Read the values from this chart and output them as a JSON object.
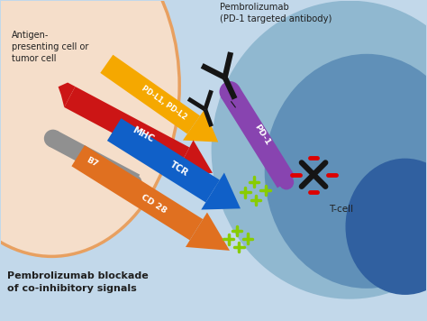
{
  "title": "Pembrolizumab blockade\nof co-inhibitory signals",
  "pembrolizumab_label": "Pembrolizumab\n(PD-1 targeted antibody)",
  "antigen_label": "Antigen-\npresenting cell or\ntumor cell",
  "tcell_label": "T-cell",
  "pdl1_label": "PD-L1, PD-L2",
  "pd1_label": "PD-1",
  "mhc_label": "MHC",
  "b7_label": "B7",
  "tcr_label": "TCR",
  "cd28_label": "CD 28",
  "bg_color": "#c2d8ea",
  "left_cell_color": "#f5deca",
  "left_cell_border": "#e8a060",
  "tcell_body_color": "#90b8d0",
  "tcell_main_color": "#6090b8",
  "tcell_nucleus_color": "#3060a0",
  "pdl1_color": "#f5a800",
  "pd1_color": "#8844b0",
  "mhc_color": "#cc1515",
  "b7_color": "#909090",
  "tcr_color": "#1060c8",
  "cd28_color": "#e07020",
  "antibody_color": "#151515",
  "cross_color": "#151515",
  "minus_color": "#dd0000",
  "plus_color": "#88cc00",
  "text_color_dark": "#202020",
  "text_color_white": "#ffffff"
}
